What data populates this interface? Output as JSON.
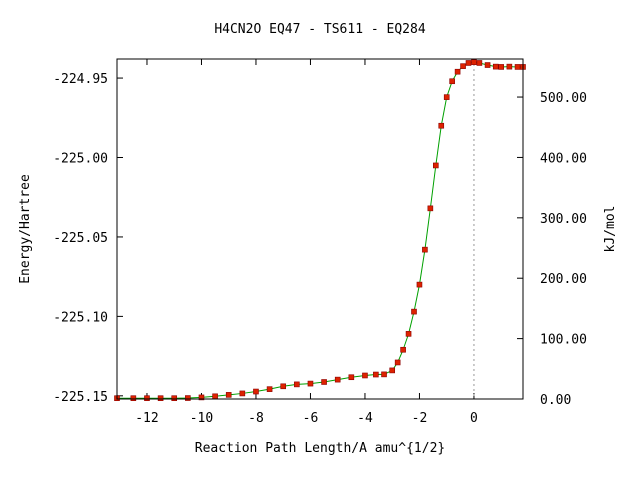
{
  "chart_data": {
    "type": "line",
    "title": "H4CN2O   EQ47 - TS611 - EQ284",
    "xlabel": "Reaction Path Length/A amu^{1/2}",
    "ylabel": "Energy/Hartree",
    "y2label": "kJ/mol",
    "xlim": [
      -13.1,
      1.8
    ],
    "ylim": [
      -225.152,
      -224.938
    ],
    "y2lim": [
      0.0,
      563.0
    ],
    "x_ticks": [
      -12,
      -10,
      -8,
      -6,
      -4,
      -2,
      0
    ],
    "x_tick_labels": [
      "-12",
      "-10",
      "-8",
      "-6",
      "-4",
      "-2",
      "0"
    ],
    "y_ticks": [
      -224.95,
      -225.0,
      -225.05,
      -225.1,
      -225.15
    ],
    "y_tick_labels": [
      "-224.95",
      "-225.00",
      "-225.05",
      "-225.10",
      "-225.15"
    ],
    "y2_ticks": [
      500,
      400,
      300,
      200,
      100,
      0
    ],
    "y2_tick_labels": [
      "500.00",
      "400.00",
      "300.00",
      "200.00",
      "100.00",
      "0.00"
    ],
    "ts_marker_x": 0.0,
    "grid": false,
    "colors": {
      "line": "#00a000",
      "marker": "#dd2200",
      "marker_edge": "#8b0000",
      "ts_line": "#999999"
    },
    "series": [
      {
        "x": [
          -13.1,
          -12.5,
          -12.0,
          -11.5,
          -11.0,
          -10.5,
          -10.0,
          -9.5,
          -9.0,
          -8.5,
          -8.0,
          -7.5,
          -7.0,
          -6.5,
          -6.0,
          -5.5,
          -5.0,
          -4.5,
          -4.0,
          -3.6,
          -3.3,
          -3.0,
          -2.8,
          -2.6,
          -2.4,
          -2.2,
          -2.0,
          -1.8,
          -1.6,
          -1.4,
          -1.2,
          -1.0,
          -0.8,
          -0.6,
          -0.4,
          -0.2,
          0.0,
          0.2,
          0.5,
          0.8,
          1.0,
          1.3,
          1.6,
          1.8
        ],
        "y": [
          -225.1515,
          -225.1515,
          -225.1515,
          -225.1515,
          -225.1515,
          -225.1514,
          -225.151,
          -225.1503,
          -225.1494,
          -225.1485,
          -225.1473,
          -225.1458,
          -225.144,
          -225.1428,
          -225.1423,
          -225.1413,
          -225.1398,
          -225.1383,
          -225.1372,
          -225.1366,
          -225.1365,
          -225.134,
          -225.129,
          -225.121,
          -225.111,
          -225.097,
          -225.08,
          -225.058,
          -225.032,
          -225.005,
          -224.98,
          -224.962,
          -224.952,
          -224.946,
          -224.9425,
          -224.9405,
          -224.94,
          -224.9405,
          -224.9418,
          -224.9428,
          -224.943,
          -224.9428,
          -224.943,
          -224.943
        ]
      }
    ]
  }
}
